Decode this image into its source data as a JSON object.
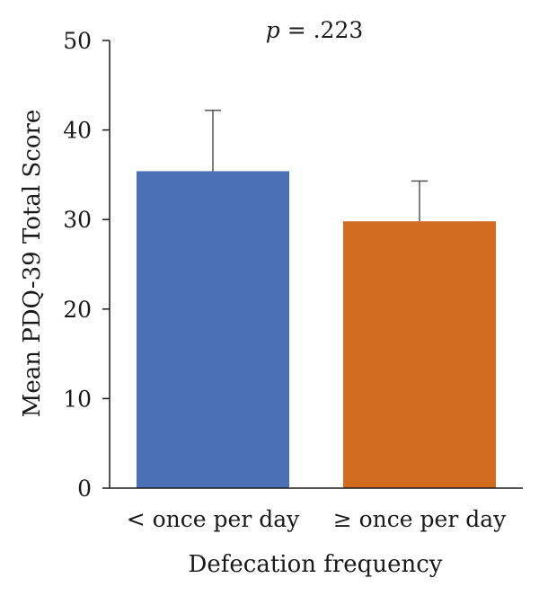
{
  "chart_data": {
    "type": "bar",
    "annotation": {
      "p_symbol": "p",
      "p_rest": " = .223"
    },
    "xlabel": "Defecation frequency",
    "ylabel": "Mean PDQ-39 Total Score",
    "categories": [
      "< once per day",
      "≥ once per day"
    ],
    "values": [
      35.4,
      29.8
    ],
    "error_upper": [
      42.2,
      34.3
    ],
    "bar_colors": [
      "#4a70b5",
      "#d26c1e"
    ],
    "ylim": [
      0,
      50
    ],
    "yticks": [
      0,
      10,
      20,
      30,
      40,
      50
    ],
    "grid": false,
    "legend": "none"
  }
}
